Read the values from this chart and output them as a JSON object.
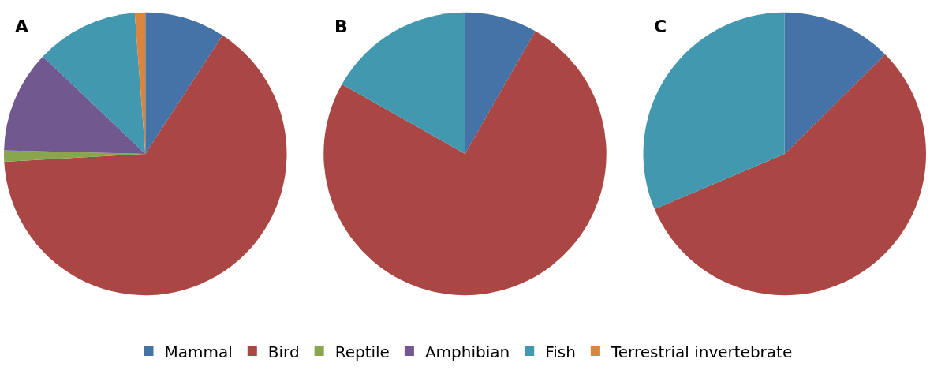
{
  "chart_data": [
    {
      "type": "pie",
      "title": "A",
      "categories": [
        "Mammal",
        "Bird",
        "Reptile",
        "Amphibian",
        "Fish",
        "Terrestrial invertebrate"
      ],
      "values": [
        9.2,
        64.9,
        1.3,
        11.7,
        11.7,
        1.2
      ],
      "colors": [
        "#4572a7",
        "#aa4643",
        "#89a54e",
        "#71588f",
        "#4198af",
        "#db843d"
      ],
      "legend": "bottom"
    },
    {
      "type": "pie",
      "title": "B",
      "categories": [
        null,
        null,
        null
      ],
      "values": [
        8.3,
        74.9,
        16.8
      ],
      "colors": [
        "#4572a7",
        "#aa4643",
        "#4198af"
      ]
    },
    {
      "type": "pie",
      "title": "C",
      "categories": [
        null,
        null,
        null
      ],
      "values": [
        12.6,
        56.0,
        31.4
      ],
      "colors": [
        "#4572a7",
        "#aa4643",
        "#4198af"
      ]
    }
  ]
}
